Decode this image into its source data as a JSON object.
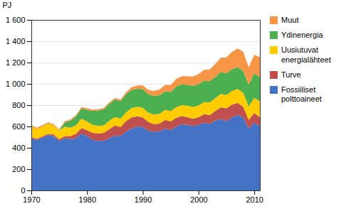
{
  "chart_data": {
    "type": "area",
    "stacked": true,
    "ylabel": "PJ",
    "x": [
      1970,
      1971,
      1972,
      1973,
      1974,
      1975,
      1976,
      1977,
      1978,
      1979,
      1980,
      1981,
      1982,
      1983,
      1984,
      1985,
      1986,
      1987,
      1988,
      1989,
      1990,
      1991,
      1992,
      1993,
      1994,
      1995,
      1996,
      1997,
      1998,
      1999,
      2000,
      2001,
      2002,
      2003,
      2004,
      2005,
      2006,
      2007,
      2008,
      2009,
      2010,
      2011
    ],
    "series": [
      {
        "name": "Fossiiliset\npolttoaineet",
        "color": "#4472C4",
        "values": [
          490,
          475,
          495,
          520,
          510,
          465,
          490,
          480,
          490,
          535,
          510,
          475,
          465,
          465,
          490,
          515,
          510,
          555,
          580,
          600,
          595,
          560,
          550,
          555,
          580,
          565,
          600,
          620,
          615,
          605,
          615,
          635,
          625,
          655,
          670,
          650,
          685,
          710,
          685,
          580,
          635,
          605
        ]
      },
      {
        "name": "Turve",
        "color": "#C0504D",
        "values": [
          10,
          10,
          12,
          12,
          15,
          15,
          20,
          30,
          40,
          50,
          55,
          65,
          70,
          75,
          85,
          95,
          85,
          95,
          105,
          95,
          90,
          82,
          72,
          72,
          82,
          82,
          82,
          78,
          72,
          68,
          72,
          82,
          82,
          90,
          110,
          120,
          120,
          112,
          100,
          82,
          92,
          82
        ]
      },
      {
        "name": "Uusiutuvat\nenergialähteet",
        "color": "#FFCC00",
        "values": [
          100,
          90,
          92,
          95,
          85,
          80,
          88,
          78,
          80,
          88,
          82,
          75,
          70,
          70,
          78,
          78,
          78,
          82,
          88,
          90,
          90,
          86,
          90,
          92,
          95,
          97,
          100,
          102,
          108,
          108,
          110,
          112,
          118,
          120,
          125,
          125,
          128,
          130,
          132,
          126,
          142,
          148
        ]
      },
      {
        "name": "Ydinenergia",
        "color": "#4CAF50",
        "values": [
          0,
          0,
          0,
          0,
          0,
          0,
          40,
          65,
          85,
          95,
          110,
          130,
          145,
          150,
          160,
          165,
          165,
          170,
          170,
          170,
          175,
          175,
          175,
          175,
          175,
          180,
          195,
          195,
          195,
          200,
          200,
          200,
          200,
          200,
          205,
          205,
          205,
          205,
          205,
          205,
          230,
          230
        ]
      },
      {
        "name": "Muut",
        "color": "#F79646",
        "values": [
          12,
          12,
          12,
          12,
          12,
          12,
          12,
          12,
          12,
          14,
          14,
          14,
          14,
          14,
          14,
          14,
          16,
          20,
          25,
          30,
          35,
          40,
          46,
          52,
          58,
          64,
          70,
          76,
          82,
          88,
          95,
          102,
          110,
          122,
          135,
          148,
          162,
          175,
          180,
          162,
          175,
          185
        ]
      }
    ],
    "xlim": [
      1970,
      2011
    ],
    "xticks": [
      1970,
      1980,
      1990,
      2000,
      2010
    ],
    "ylim": [
      0,
      1600
    ],
    "yticks": [
      0,
      200,
      400,
      600,
      800,
      {
        "value": 1000,
        "label": "1 000"
      },
      {
        "value": 1200,
        "label": "1 200"
      },
      {
        "value": 1400,
        "label": "1 400"
      },
      {
        "value": 1600,
        "label": "1 600"
      }
    ],
    "grid": true,
    "legend": "right"
  }
}
